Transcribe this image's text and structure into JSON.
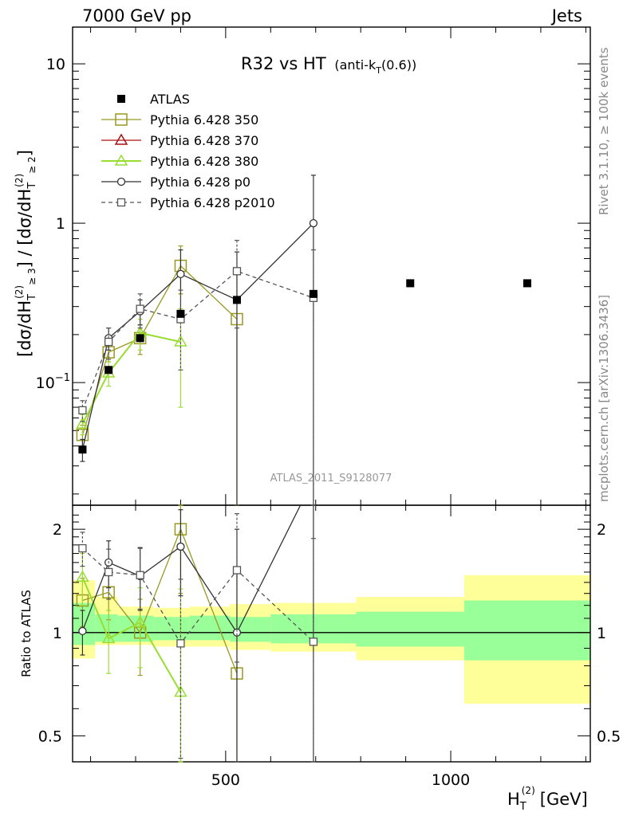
{
  "header": {
    "left": "7000 GeV pp",
    "right": "Jets"
  },
  "side_labels": {
    "rivet": "Rivet 3.1.10, ≥ 100k events",
    "mcplots": "mcplots.cern.ch [arXiv:1306.3436]"
  },
  "chart_data": {
    "type": "scatter",
    "title": "R32 vs HT",
    "title_suffix": "(anti-k",
    "title_suffix_sub": "T",
    "title_suffix_end": "(0.6))",
    "analysis_label": "ATLAS_2011_S9128077",
    "xlabel": "H",
    "xlabel_sub": "T",
    "xlabel_sup": "(2)",
    "xlabel_unit": "[GeV]",
    "ylabel": "[dσ/dH",
    "ylabel_rest": "] / [dσ/dH",
    "ylabel_end": "]",
    "ylabel_sup": "(2)",
    "ylabel_sub": "T",
    "ylabel_exp1": "≥ 3",
    "ylabel_exp2": "≥ 2",
    "ratio_ylabel": "Ratio to ATLAS",
    "xlim": [
      160,
      1310
    ],
    "ylim": [
      0.017,
      17
    ],
    "ratio_ylim": [
      0.42,
      2.35
    ],
    "x_ticks": [
      500,
      1000
    ],
    "y_ticks_main": [
      {
        "value": 0.1,
        "label": "10",
        "sup": "−1"
      },
      {
        "value": 1,
        "label": "1",
        "sup": ""
      },
      {
        "value": 10,
        "label": "10",
        "sup": ""
      }
    ],
    "y_ticks_ratio": [
      {
        "value": 0.5,
        "label": "0.5"
      },
      {
        "value": 1,
        "label": "1"
      },
      {
        "value": 2,
        "label": "2"
      }
    ],
    "band_edges": [
      160,
      210,
      260,
      340,
      420,
      510,
      600,
      790,
      1030,
      1310
    ],
    "band_green": [
      [
        0.92,
        1.22
      ],
      [
        0.94,
        1.13
      ],
      [
        0.94,
        1.12
      ],
      [
        0.95,
        1.11
      ],
      [
        0.95,
        1.12
      ],
      [
        0.94,
        1.11
      ],
      [
        0.93,
        1.13
      ],
      [
        0.91,
        1.15
      ],
      [
        0.83,
        1.24
      ]
    ],
    "band_yellow": [
      [
        0.84,
        1.42
      ],
      [
        0.92,
        1.27
      ],
      [
        0.92,
        1.19
      ],
      [
        0.91,
        1.18
      ],
      [
        0.91,
        1.19
      ],
      [
        0.89,
        1.21
      ],
      [
        0.88,
        1.22
      ],
      [
        0.83,
        1.27
      ],
      [
        0.62,
        1.47
      ]
    ],
    "atlas": {
      "name": "ATLAS",
      "x": [
        182,
        240,
        310,
        400,
        525,
        695,
        910,
        1170
      ],
      "y": [
        0.038,
        0.12,
        0.19,
        0.27,
        0.33,
        0.36,
        0.42,
        0.42
      ]
    },
    "series": [
      {
        "name": "Pythia 6.428 350",
        "color": "#999922",
        "marker": "square",
        "dash": false,
        "x": [
          182,
          240,
          310,
          400,
          525
        ],
        "y": [
          0.047,
          0.155,
          0.19,
          0.54,
          0.25
        ],
        "err": [
          0.007,
          0.02,
          0.04,
          0.18,
          0.25
        ],
        "ratio": [
          1.24,
          1.31,
          1.0,
          2.0,
          0.76
        ],
        "ratio_err": [
          0.2,
          0.22,
          0.25,
          0.7,
          0.76
        ]
      },
      {
        "name": "Pythia 6.428 370",
        "color": "#aa1111",
        "marker": "triangle",
        "dash": false,
        "x": [],
        "y": [],
        "err": [],
        "ratio": [],
        "ratio_err": []
      },
      {
        "name": "Pythia 6.428 380",
        "color": "#99dd33",
        "marker": "triangle",
        "dash": false,
        "x": [
          182,
          240,
          310,
          400
        ],
        "y": [
          0.055,
          0.115,
          0.205,
          0.18
        ],
        "err": [
          0.008,
          0.02,
          0.045,
          0.11
        ],
        "ratio": [
          1.45,
          0.96,
          1.07,
          0.67
        ],
        "ratio_err": [
          0.25,
          0.2,
          0.28,
          0.67
        ]
      },
      {
        "name": "Pythia 6.428 p0",
        "color": "#333333",
        "marker": "circle",
        "dash": false,
        "x": [
          182,
          240,
          310,
          400,
          525,
          695
        ],
        "y": [
          0.038,
          0.19,
          0.28,
          0.48,
          0.33,
          1.0
        ],
        "err": [
          0.006,
          0.03,
          0.05,
          0.2,
          0.33,
          1.0
        ],
        "ratio": [
          1.01,
          1.6,
          1.46,
          1.78,
          1.0,
          2.8
        ],
        "ratio_err": [
          0.15,
          0.25,
          0.3,
          0.5,
          1.0,
          2.8
        ]
      },
      {
        "name": "Pythia 6.428 p2010",
        "color": "#555555",
        "marker": "square-small",
        "dash": true,
        "x": [
          182,
          240,
          310,
          400,
          525,
          695
        ],
        "y": [
          0.067,
          0.18,
          0.29,
          0.25,
          0.5,
          0.34
        ],
        "err": [
          0.01,
          0.04,
          0.07,
          0.13,
          0.28,
          0.34
        ],
        "ratio": [
          1.76,
          1.5,
          1.47,
          0.93,
          1.52,
          0.94
        ],
        "ratio_err": [
          0.2,
          0.25,
          0.3,
          0.5,
          0.7,
          0.94
        ]
      }
    ],
    "legend_placement": "top-left",
    "grid": false
  }
}
